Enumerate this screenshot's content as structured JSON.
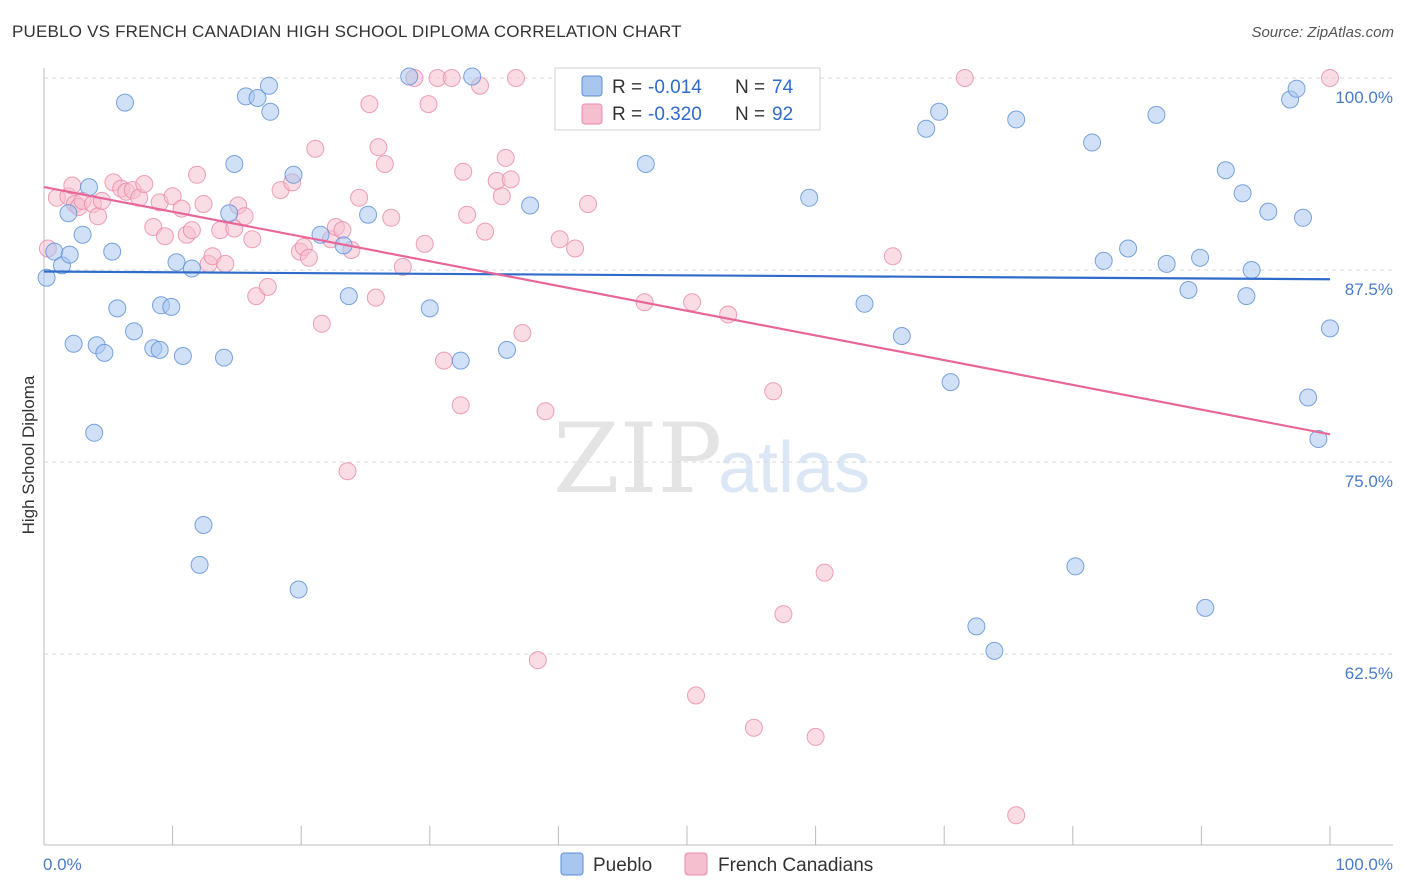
{
  "title": "PUEBLO VS FRENCH CANADIAN HIGH SCHOOL DIPLOMA CORRELATION CHART",
  "source": "Source: ZipAtlas.com",
  "colors": {
    "pueblo_fill": "#a9c6ee",
    "pueblo_stroke": "#5b8fd6",
    "pueblo_line": "#2f6bc9",
    "french_fill": "#f6bfd0",
    "french_stroke": "#e98aa8",
    "french_line": "#e8679a",
    "grid": "#d9d9d9",
    "axis_text": "#4a7bc8"
  },
  "legend": {
    "items": [
      {
        "r_label": "R =",
        "r_value": "-0.014",
        "n_label": "N =",
        "n_value": "74"
      },
      {
        "r_label": "R =",
        "r_value": "-0.320",
        "n_label": "N =",
        "n_value": "92"
      }
    ]
  },
  "bottom_legend": [
    "Pueblo",
    "French Canadians"
  ],
  "watermark": {
    "zip": "ZIP",
    "atlas": "atlas"
  },
  "chart_data": {
    "type": "scatter",
    "ylabel": "High School Diploma",
    "xlabel": "",
    "x_tick_labels": [
      "0.0%",
      "100.0%"
    ],
    "y_tick_labels": [
      "100.0%",
      "87.5%",
      "75.0%",
      "62.5%"
    ],
    "y_ticks": [
      100,
      87.5,
      75,
      62.5
    ],
    "xlim": [
      0,
      100
    ],
    "ylim": [
      50.8,
      101.2
    ],
    "grid": true,
    "legend_position": "top-center",
    "series": [
      {
        "name": "Pueblo",
        "r": -0.014,
        "n": 74,
        "trend": [
          [
            0,
            87.4
          ],
          [
            100,
            86.9
          ]
        ],
        "points": [
          [
            0.2,
            87.0
          ],
          [
            0.8,
            88.7
          ],
          [
            1.4,
            87.8
          ],
          [
            1.9,
            91.2
          ],
          [
            2.3,
            82.7
          ],
          [
            3.0,
            89.8
          ],
          [
            3.5,
            92.9
          ],
          [
            3.9,
            76.9
          ],
          [
            4.1,
            82.6
          ],
          [
            4.7,
            82.1
          ],
          [
            5.3,
            88.7
          ],
          [
            5.7,
            85.0
          ],
          [
            6.3,
            98.4
          ],
          [
            7.0,
            83.5
          ],
          [
            8.5,
            82.4
          ],
          [
            9.0,
            82.3
          ],
          [
            9.1,
            85.2
          ],
          [
            9.9,
            85.1
          ],
          [
            10.3,
            88.0
          ],
          [
            10.8,
            81.9
          ],
          [
            11.5,
            87.6
          ],
          [
            12.4,
            70.9
          ],
          [
            12.1,
            68.3
          ],
          [
            14.0,
            81.8
          ],
          [
            14.4,
            91.2
          ],
          [
            14.8,
            94.4
          ],
          [
            15.7,
            98.8
          ],
          [
            16.6,
            98.7
          ],
          [
            17.5,
            99.5
          ],
          [
            17.6,
            97.8
          ],
          [
            19.4,
            93.7
          ],
          [
            19.8,
            66.7
          ],
          [
            21.5,
            89.8
          ],
          [
            23.3,
            89.1
          ],
          [
            23.7,
            85.8
          ],
          [
            25.2,
            91.1
          ],
          [
            28.4,
            100.1
          ],
          [
            32.4,
            81.6
          ],
          [
            33.3,
            100.1
          ],
          [
            36.0,
            82.3
          ],
          [
            37.8,
            91.7
          ],
          [
            42.8,
            98.9
          ],
          [
            46.8,
            94.4
          ],
          [
            59.5,
            92.2
          ],
          [
            63.8,
            85.3
          ],
          [
            66.7,
            83.2
          ],
          [
            68.6,
            96.7
          ],
          [
            69.6,
            97.8
          ],
          [
            70.5,
            80.2
          ],
          [
            72.5,
            64.3
          ],
          [
            73.9,
            62.7
          ],
          [
            75.6,
            97.3
          ],
          [
            80.2,
            68.2
          ],
          [
            81.5,
            95.8
          ],
          [
            82.4,
            88.1
          ],
          [
            84.3,
            88.9
          ],
          [
            86.5,
            97.6
          ],
          [
            87.3,
            87.9
          ],
          [
            89.0,
            86.2
          ],
          [
            89.9,
            88.3
          ],
          [
            90.3,
            65.5
          ],
          [
            91.9,
            94.0
          ],
          [
            93.2,
            92.5
          ],
          [
            93.5,
            85.8
          ],
          [
            93.9,
            87.5
          ],
          [
            95.2,
            91.3
          ],
          [
            96.9,
            98.6
          ],
          [
            97.4,
            99.3
          ],
          [
            100.0,
            83.7
          ],
          [
            97.9,
            90.9
          ],
          [
            98.3,
            79.2
          ],
          [
            99.1,
            76.5
          ],
          [
            2.0,
            88.5
          ],
          [
            30.0,
            85.0
          ]
        ]
      },
      {
        "name": "French Canadians",
        "r": -0.32,
        "n": 92,
        "trend": [
          [
            0,
            92.9
          ],
          [
            100,
            76.8
          ]
        ],
        "points": [
          [
            0.3,
            88.9
          ],
          [
            1.0,
            92.2
          ],
          [
            1.9,
            92.3
          ],
          [
            2.4,
            91.8
          ],
          [
            2.7,
            91.6
          ],
          [
            3.0,
            92.0
          ],
          [
            3.8,
            91.8
          ],
          [
            4.2,
            91.0
          ],
          [
            4.5,
            92.0
          ],
          [
            5.4,
            93.2
          ],
          [
            6.0,
            92.8
          ],
          [
            6.4,
            92.6
          ],
          [
            6.9,
            92.7
          ],
          [
            7.4,
            92.2
          ],
          [
            7.8,
            93.1
          ],
          [
            8.5,
            90.3
          ],
          [
            9.0,
            91.9
          ],
          [
            9.4,
            89.7
          ],
          [
            10.0,
            92.3
          ],
          [
            10.7,
            91.5
          ],
          [
            11.1,
            89.8
          ],
          [
            11.5,
            90.1
          ],
          [
            11.9,
            93.7
          ],
          [
            12.4,
            91.8
          ],
          [
            12.8,
            87.9
          ],
          [
            13.1,
            88.4
          ],
          [
            13.7,
            90.1
          ],
          [
            14.1,
            87.9
          ],
          [
            14.8,
            90.2
          ],
          [
            15.1,
            91.7
          ],
          [
            15.6,
            91.0
          ],
          [
            16.2,
            89.5
          ],
          [
            16.5,
            85.8
          ],
          [
            17.4,
            86.4
          ],
          [
            18.4,
            92.7
          ],
          [
            19.3,
            93.2
          ],
          [
            19.9,
            88.7
          ],
          [
            20.2,
            89.0
          ],
          [
            20.6,
            88.3
          ],
          [
            21.1,
            95.4
          ],
          [
            21.6,
            84.0
          ],
          [
            22.3,
            89.5
          ],
          [
            22.7,
            90.3
          ],
          [
            23.2,
            90.1
          ],
          [
            23.6,
            74.4
          ],
          [
            23.9,
            88.8
          ],
          [
            24.5,
            92.2
          ],
          [
            25.3,
            98.3
          ],
          [
            25.8,
            85.7
          ],
          [
            26.0,
            95.5
          ],
          [
            26.5,
            94.4
          ],
          [
            27.0,
            90.9
          ],
          [
            27.9,
            87.7
          ],
          [
            28.8,
            100.0
          ],
          [
            29.6,
            89.2
          ],
          [
            29.9,
            98.3
          ],
          [
            30.6,
            100.0
          ],
          [
            31.1,
            81.6
          ],
          [
            31.7,
            100.0
          ],
          [
            32.4,
            78.7
          ],
          [
            32.6,
            93.9
          ],
          [
            32.9,
            91.1
          ],
          [
            33.9,
            99.5
          ],
          [
            34.3,
            90.0
          ],
          [
            35.2,
            93.3
          ],
          [
            35.6,
            92.3
          ],
          [
            35.9,
            94.8
          ],
          [
            36.3,
            93.4
          ],
          [
            36.7,
            100.0
          ],
          [
            37.2,
            83.4
          ],
          [
            38.4,
            62.1
          ],
          [
            39.0,
            78.3
          ],
          [
            40.1,
            89.5
          ],
          [
            41.3,
            88.9
          ],
          [
            42.3,
            91.8
          ],
          [
            46.7,
            85.4
          ],
          [
            47.8,
            100.0
          ],
          [
            50.4,
            85.4
          ],
          [
            53.2,
            84.6
          ],
          [
            55.2,
            57.7
          ],
          [
            56.7,
            79.6
          ],
          [
            57.5,
            65.1
          ],
          [
            60.0,
            57.1
          ],
          [
            60.7,
            67.8
          ],
          [
            66.0,
            88.4
          ],
          [
            71.6,
            100.0
          ],
          [
            75.6,
            52.0
          ],
          [
            100.0,
            100.0
          ],
          [
            46.1,
            100.0
          ],
          [
            49.4,
            99.9
          ],
          [
            50.7,
            59.8
          ],
          [
            2.2,
            93.0
          ]
        ]
      }
    ]
  }
}
